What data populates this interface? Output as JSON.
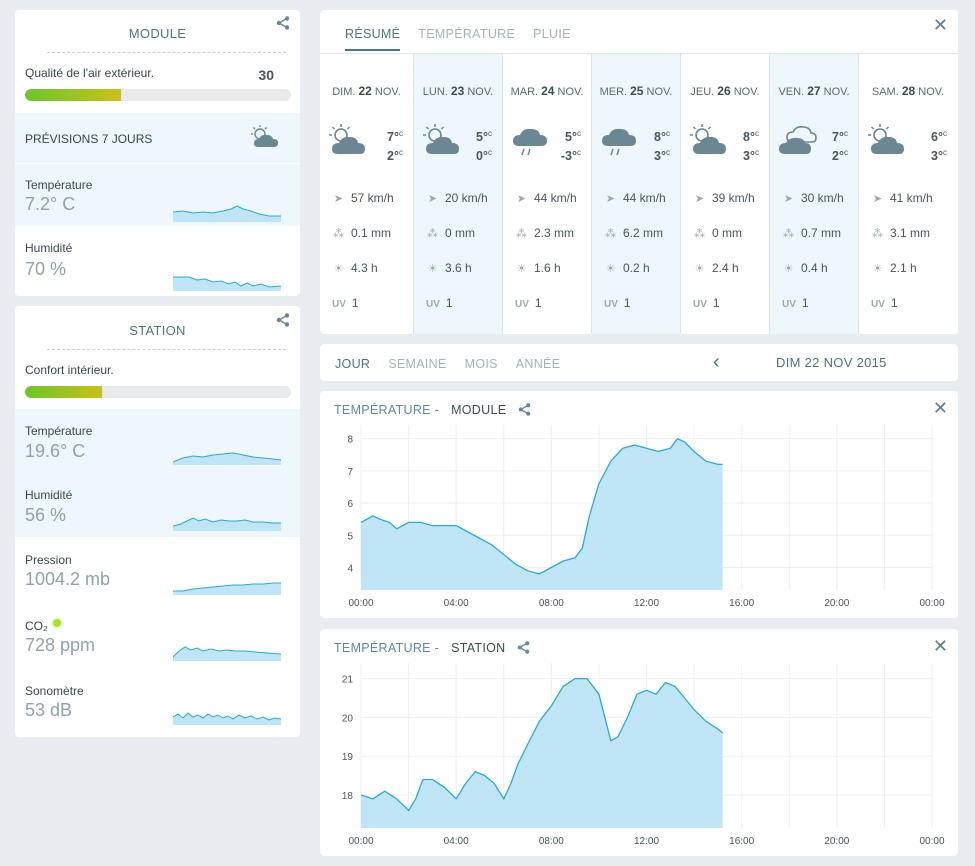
{
  "module": {
    "title": "MODULE",
    "air_label": "Qualité de l'air extérieur.",
    "air_value": "30",
    "air_fraction": 0.36,
    "forecast_label": "PRÉVISIONS 7 JOURS",
    "temp_label": "Température",
    "temp_value": "7.2° C",
    "hum_label": "Humidité",
    "hum_value": "70 %"
  },
  "station": {
    "title": "STATION",
    "comfort_label": "Confort intérieur.",
    "comfort_fraction": 0.29,
    "temp_label": "Température",
    "temp_value": "19.6° C",
    "hum_label": "Humidité",
    "hum_value": "56 %",
    "press_label": "Pression",
    "press_value": "1004.2 mb",
    "co2_label": "CO₂",
    "co2_value": "728 ppm",
    "sound_label": "Sonomètre",
    "sound_value": "53 dB"
  },
  "forecast": {
    "tabs": [
      "RÉSUMÉ",
      "TEMPÉRATURE",
      "PLUIE"
    ],
    "days": [
      {
        "dow": "DIM.",
        "day": "22",
        "mon": "NOV.",
        "icon": "sun-cloud-icon",
        "max": "7°",
        "min": "2°",
        "wind": "57 km/h",
        "rain": "0.1 mm",
        "sun": "4.3 h",
        "uv": "1",
        "hl": false
      },
      {
        "dow": "LUN.",
        "day": "23",
        "mon": "NOV.",
        "icon": "sun-cloud-icon",
        "max": "5°",
        "min": "0°",
        "wind": "20 km/h",
        "rain": "0 mm",
        "sun": "3.6 h",
        "uv": "1",
        "hl": true
      },
      {
        "dow": "MAR.",
        "day": "24",
        "mon": "NOV.",
        "icon": "rain-icon",
        "max": "5°",
        "min": "-3°",
        "wind": "44 km/h",
        "rain": "2.3 mm",
        "sun": "1.6 h",
        "uv": "1",
        "hl": false
      },
      {
        "dow": "MER.",
        "day": "25",
        "mon": "NOV.",
        "icon": "rain-icon",
        "max": "8°",
        "min": "3°",
        "wind": "44 km/h",
        "rain": "6.2 mm",
        "sun": "0.2 h",
        "uv": "1",
        "hl": true
      },
      {
        "dow": "JEU.",
        "day": "26",
        "mon": "NOV.",
        "icon": "sun-cloud-icon",
        "max": "8°",
        "min": "3°",
        "wind": "39 km/h",
        "rain": "0 mm",
        "sun": "2.4 h",
        "uv": "1",
        "hl": false
      },
      {
        "dow": "VEN.",
        "day": "27",
        "mon": "NOV.",
        "icon": "clouds-icon",
        "max": "7°",
        "min": "2°",
        "wind": "30 km/h",
        "rain": "0.7 mm",
        "sun": "0.4 h",
        "uv": "1",
        "hl": true
      },
      {
        "dow": "SAM.",
        "day": "28",
        "mon": "NOV.",
        "icon": "sun-cloud-icon",
        "max": "6°",
        "min": "3°",
        "wind": "41 km/h",
        "rain": "3.1 mm",
        "sun": "2.1 h",
        "uv": "1",
        "hl": false
      }
    ],
    "unit_c": "c",
    "uv_label": "UV"
  },
  "period": {
    "tabs": [
      "JOUR",
      "SEMAINE",
      "MOIS",
      "ANNÉE"
    ],
    "date": "DIM 22 NOV 2015"
  },
  "chart_module": {
    "prefix": "TEMPÉRATURE -",
    "name": "MODULE"
  },
  "chart_station": {
    "prefix": "TEMPÉRATURE -",
    "name": "STATION"
  },
  "chart_data": [
    {
      "type": "area",
      "x_ticks": [
        "00:00",
        "04:00",
        "08:00",
        "12:00",
        "16:00",
        "20:00",
        "00:00"
      ],
      "y_ticks": [
        4,
        5,
        6,
        7,
        8
      ],
      "ylim": [
        3.3,
        8.3
      ],
      "xlim": [
        0,
        24
      ],
      "grid": true,
      "x": [
        0,
        0.5,
        0.8,
        1.2,
        1.5,
        2,
        2.5,
        3,
        3.5,
        4,
        4.5,
        5,
        5.5,
        6,
        6.5,
        7,
        7.5,
        8,
        8.5,
        9,
        9.3,
        9.6,
        10,
        10.5,
        11,
        11.5,
        12,
        12.5,
        13,
        13.3,
        13.6,
        14,
        14.5,
        15,
        15.2
      ],
      "y": [
        5.4,
        5.6,
        5.5,
        5.4,
        5.2,
        5.4,
        5.4,
        5.3,
        5.3,
        5.3,
        5.1,
        4.9,
        4.7,
        4.4,
        4.1,
        3.9,
        3.8,
        4.0,
        4.2,
        4.3,
        4.6,
        5.6,
        6.6,
        7.3,
        7.7,
        7.8,
        7.7,
        7.6,
        7.7,
        8.0,
        7.9,
        7.6,
        7.3,
        7.2,
        7.2
      ],
      "xlabel": "",
      "ylabel": ""
    },
    {
      "type": "area",
      "x_ticks": [
        "00:00",
        "04:00",
        "08:00",
        "12:00",
        "16:00",
        "20:00",
        "00:00"
      ],
      "y_ticks": [
        18,
        19,
        20,
        21
      ],
      "ylim": [
        17.15,
        21.3
      ],
      "xlim": [
        0,
        24
      ],
      "grid": true,
      "x": [
        0,
        0.5,
        1,
        1.5,
        2,
        2.3,
        2.6,
        3,
        3.5,
        4,
        4.4,
        4.8,
        5.2,
        5.6,
        6,
        6.3,
        6.6,
        7,
        7.5,
        8,
        8.5,
        9,
        9.5,
        10,
        10.5,
        10.8,
        11.2,
        11.6,
        12,
        12.4,
        12.8,
        13.2,
        13.6,
        14,
        14.5,
        15,
        15.2
      ],
      "y": [
        18.0,
        17.9,
        18.1,
        17.9,
        17.6,
        17.9,
        18.4,
        18.4,
        18.2,
        17.9,
        18.3,
        18.6,
        18.5,
        18.3,
        17.9,
        18.3,
        18.8,
        19.3,
        19.9,
        20.3,
        20.8,
        21.0,
        21.0,
        20.6,
        19.4,
        19.5,
        20.0,
        20.6,
        20.7,
        20.6,
        20.9,
        20.8,
        20.5,
        20.2,
        19.9,
        19.7,
        19.6
      ],
      "xlabel": "",
      "ylabel": ""
    }
  ],
  "colors": {
    "accent": "#4f7383",
    "chart_line": "#2da8d8",
    "chart_fill": "#bfe5f6",
    "bar_green": "#6cc52d",
    "bar_yellow": "#c9c11d",
    "highlight": "#eef7fc"
  }
}
